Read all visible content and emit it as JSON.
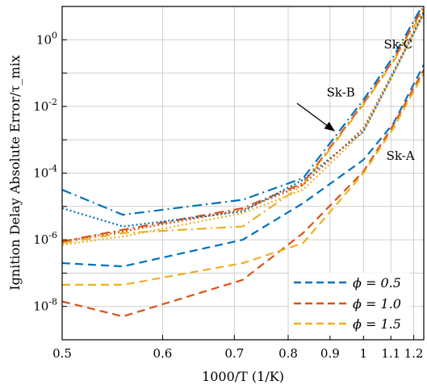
{
  "chart_data": {
    "type": "line",
    "xlabel": "1000/T (1/K)",
    "ylabel": "Ignition Delay Absolute Error/τ_mix",
    "xlim": [
      0.5,
      1.25
    ],
    "ylim": [
      -9,
      1
    ],
    "yscale": "log",
    "xscale": "reciprocal",
    "grid": true,
    "legend_position": "bottom-right",
    "x_ticks": [
      "0.5",
      "0.6",
      "0.7",
      "0.8",
      "0.9",
      "1",
      "1.1",
      "1.2"
    ],
    "y_ticks": [
      "10^-8",
      "10^-6",
      "10^-4",
      "10^-2",
      "10^0"
    ],
    "legend": [
      {
        "label": "ϕ = 0.5",
        "color": "#0072BD",
        "dash": "dashed"
      },
      {
        "label": "ϕ = 1.0",
        "color": "#D95319",
        "dash": "dashed"
      },
      {
        "label": "ϕ = 1.5",
        "color": "#EDB120",
        "dash": "dashed"
      }
    ],
    "annotations": [
      {
        "text": "Sk-C",
        "x": 1.13,
        "y": 0.55
      },
      {
        "text": "Sk-B",
        "x": 0.93,
        "y": 0.02
      },
      {
        "text": "Sk-A",
        "x": 1.14,
        "y": 0.00025
      }
    ],
    "colors": {
      "phi05": "#0072BD",
      "phi10": "#D95319",
      "phi15": "#EDB120"
    },
    "series": [
      {
        "group": "Sk-C",
        "phi": "0.5",
        "color": "#0072BD",
        "dash": "dashdot",
        "points": [
          [
            0.5,
            -4.5
          ],
          [
            0.556,
            -5.25
          ],
          [
            0.714,
            -4.8
          ],
          [
            0.833,
            -4.15
          ],
          [
            1.0,
            -1.8
          ],
          [
            1.111,
            -0.5
          ],
          [
            1.25,
            1.1
          ]
        ]
      },
      {
        "group": "Sk-C",
        "phi": "1.0",
        "color": "#D95319",
        "dash": "dashdot",
        "points": [
          [
            0.5,
            -6.05
          ],
          [
            0.556,
            -5.7
          ],
          [
            0.714,
            -5.05
          ],
          [
            0.833,
            -4.3
          ],
          [
            1.0,
            -1.9
          ],
          [
            1.111,
            -0.6
          ],
          [
            1.25,
            1.0
          ]
        ]
      },
      {
        "group": "Sk-C",
        "phi": "1.5",
        "color": "#EDB120",
        "dash": "dashdot",
        "points": [
          [
            0.5,
            -6.1
          ],
          [
            0.556,
            -5.8
          ],
          [
            0.714,
            -5.6
          ],
          [
            0.833,
            -4.35
          ],
          [
            1.0,
            -1.95
          ],
          [
            1.111,
            -0.65
          ],
          [
            1.25,
            0.9
          ]
        ]
      },
      {
        "group": "Sk-B",
        "phi": "0.5",
        "color": "#0072BD",
        "dash": "dotted",
        "points": [
          [
            0.5,
            -5.05
          ],
          [
            0.556,
            -5.6
          ],
          [
            0.714,
            -5.15
          ],
          [
            0.833,
            -4.2
          ],
          [
            1.0,
            -2.75
          ],
          [
            1.111,
            -1.0
          ],
          [
            1.25,
            0.8
          ]
        ]
      },
      {
        "group": "Sk-B",
        "phi": "1.0",
        "color": "#D95319",
        "dash": "dotted",
        "points": [
          [
            0.5,
            -6.05
          ],
          [
            0.556,
            -5.75
          ],
          [
            0.714,
            -5.1
          ],
          [
            0.833,
            -4.35
          ],
          [
            1.0,
            -2.65
          ],
          [
            1.111,
            -0.95
          ],
          [
            1.25,
            0.85
          ]
        ]
      },
      {
        "group": "Sk-B",
        "phi": "1.5",
        "color": "#EDB120",
        "dash": "dotted",
        "points": [
          [
            0.5,
            -6.15
          ],
          [
            0.556,
            -5.9
          ],
          [
            0.714,
            -5.2
          ],
          [
            0.833,
            -4.5
          ],
          [
            1.0,
            -2.75
          ],
          [
            1.111,
            -1.0
          ],
          [
            1.25,
            0.75
          ]
        ]
      },
      {
        "group": "Sk-A",
        "phi": "0.5",
        "color": "#0072BD",
        "dash": "dashed",
        "points": [
          [
            0.5,
            -6.7
          ],
          [
            0.556,
            -6.8
          ],
          [
            0.714,
            -6.0
          ],
          [
            0.833,
            -4.9
          ],
          [
            1.0,
            -3.6
          ],
          [
            1.111,
            -2.5
          ],
          [
            1.25,
            -0.75
          ]
        ]
      },
      {
        "group": "Sk-A",
        "phi": "1.0",
        "color": "#D95319",
        "dash": "dashed",
        "points": [
          [
            0.5,
            -7.85
          ],
          [
            0.556,
            -8.3
          ],
          [
            0.714,
            -7.2
          ],
          [
            0.833,
            -5.8
          ],
          [
            1.0,
            -3.95
          ],
          [
            1.111,
            -2.55
          ],
          [
            1.25,
            -0.9
          ]
        ]
      },
      {
        "group": "Sk-A",
        "phi": "1.5",
        "color": "#EDB120",
        "dash": "dashed",
        "points": [
          [
            0.5,
            -7.35
          ],
          [
            0.556,
            -7.35
          ],
          [
            0.714,
            -6.7
          ],
          [
            0.833,
            -6.1
          ],
          [
            1.0,
            -4.0
          ],
          [
            1.111,
            -2.65
          ],
          [
            1.25,
            -1.0
          ]
        ]
      }
    ]
  }
}
